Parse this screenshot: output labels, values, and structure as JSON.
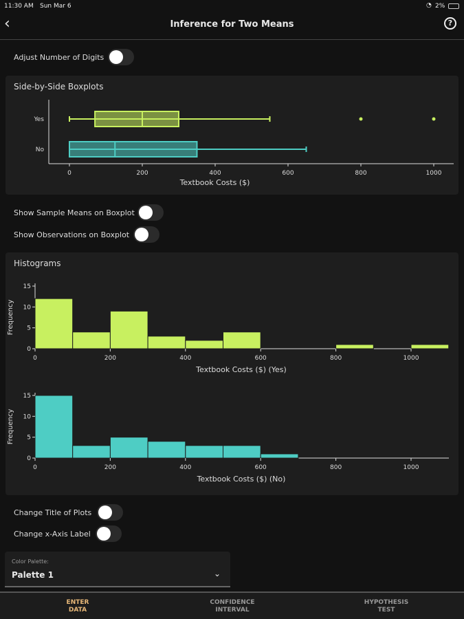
{
  "status": {
    "time": "11:30 AM",
    "date": "Sun Mar 6",
    "battery": "2%"
  },
  "header": {
    "title": "Inference for Two Means",
    "back_icon": "chevron-left-icon",
    "help_icon": "question-circle-icon"
  },
  "controls": {
    "adjust_digits": "Adjust Number of Digits",
    "show_means": "Show Sample Means on Boxplot",
    "show_obs": "Show Observations on Boxplot",
    "change_title": "Change Title of Plots",
    "change_xlabel": "Change x-Axis Label"
  },
  "boxplot_section": "Side-by-Side Boxplots",
  "hist_section": "Histograms",
  "palette": {
    "label": "Color Palette:",
    "value": "Palette 1"
  },
  "nav": [
    {
      "l1": "ENTER",
      "l2": "DATA"
    },
    {
      "l1": "CONFIDENCE",
      "l2": "INTERVAL"
    },
    {
      "l1": "HYPOTHESIS",
      "l2": "TEST"
    }
  ],
  "chart_data": [
    {
      "type": "boxplot",
      "xlabel": "Textbook Costs ($)",
      "xticks": [
        0,
        200,
        400,
        600,
        800,
        1000
      ],
      "series": [
        {
          "name": "Yes",
          "color": "#c8f060",
          "min": 0,
          "q1": 70,
          "median": 200,
          "q3": 300,
          "max": 550,
          "outliers": [
            800,
            1000
          ]
        },
        {
          "name": "No",
          "color": "#4ecdc4",
          "min": 0,
          "q1": 0,
          "median": 125,
          "q3": 350,
          "max": 650,
          "outliers": []
        }
      ]
    },
    {
      "type": "bar",
      "xlabel": "Textbook Costs ($) (Yes)",
      "ylabel": "Frequency",
      "color": "#c8f060",
      "bin_width": 100,
      "xlim": [
        0,
        1100
      ],
      "ylim": [
        0,
        15
      ],
      "xticks": [
        0,
        200,
        400,
        600,
        800,
        1000
      ],
      "yticks": [
        0,
        5,
        10,
        15
      ],
      "values": [
        12,
        4,
        9,
        3,
        2,
        4,
        0,
        0,
        1,
        0,
        1
      ]
    },
    {
      "type": "bar",
      "xlabel": "Textbook Costs ($) (No)",
      "ylabel": "Frequency",
      "color": "#4ecdc4",
      "bin_width": 100,
      "xlim": [
        0,
        1100
      ],
      "ylim": [
        0,
        15
      ],
      "xticks": [
        0,
        200,
        400,
        600,
        800,
        1000
      ],
      "yticks": [
        0,
        5,
        10,
        15
      ],
      "values": [
        15,
        3,
        5,
        4,
        3,
        3,
        1,
        0,
        0,
        0,
        0
      ]
    }
  ]
}
